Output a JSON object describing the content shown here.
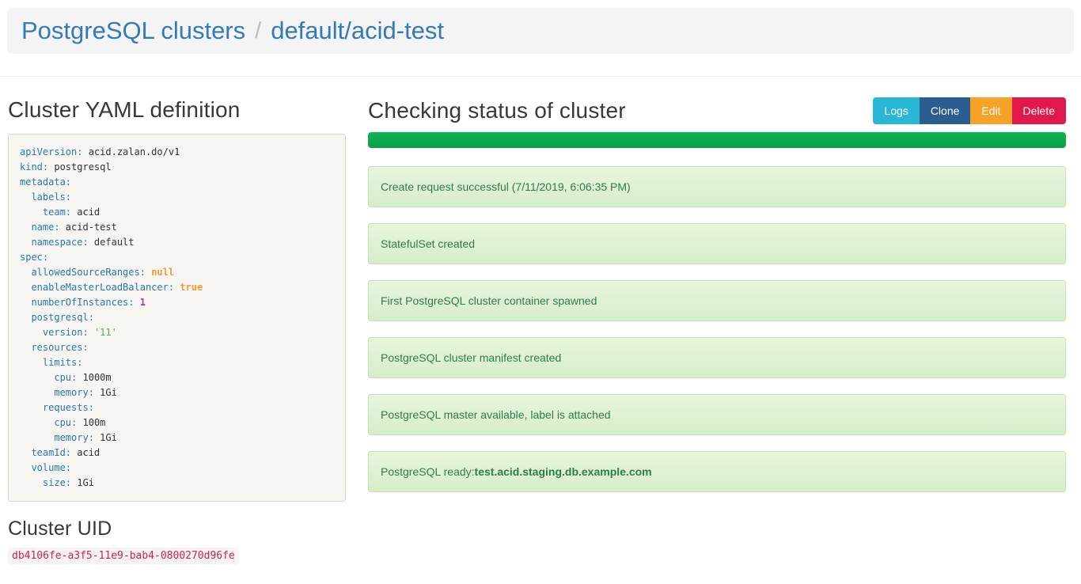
{
  "header": {
    "breadcrumb_root": "PostgreSQL clusters",
    "breadcrumb_separator": "/",
    "breadcrumb_current": "default/acid-test"
  },
  "yaml_section": {
    "title": "Cluster YAML definition",
    "lines": [
      [
        [
          "k",
          "apiVersion:"
        ],
        [
          "p",
          " acid.zalan.do/v1"
        ]
      ],
      [
        [
          "k",
          "kind:"
        ],
        [
          "p",
          " postgresql"
        ]
      ],
      [
        [
          "k",
          "metadata:"
        ]
      ],
      [
        [
          "p",
          "  "
        ],
        [
          "k",
          "labels:"
        ]
      ],
      [
        [
          "p",
          "    "
        ],
        [
          "k",
          "team:"
        ],
        [
          "p",
          " acid"
        ]
      ],
      [
        [
          "p",
          "  "
        ],
        [
          "k",
          "name:"
        ],
        [
          "p",
          " acid-test"
        ]
      ],
      [
        [
          "p",
          "  "
        ],
        [
          "k",
          "namespace:"
        ],
        [
          "p",
          " default"
        ]
      ],
      [
        [
          "k",
          "spec:"
        ]
      ],
      [
        [
          "p",
          "  "
        ],
        [
          "k",
          "allowedSourceRanges:"
        ],
        [
          "p",
          " "
        ],
        [
          "l",
          "null"
        ]
      ],
      [
        [
          "p",
          "  "
        ],
        [
          "k",
          "enableMasterLoadBalancer:"
        ],
        [
          "p",
          " "
        ],
        [
          "l",
          "true"
        ]
      ],
      [
        [
          "p",
          "  "
        ],
        [
          "k",
          "numberOfInstances:"
        ],
        [
          "p",
          " "
        ],
        [
          "n",
          "1"
        ]
      ],
      [
        [
          "p",
          "  "
        ],
        [
          "k",
          "postgresql:"
        ]
      ],
      [
        [
          "p",
          "    "
        ],
        [
          "k",
          "version:"
        ],
        [
          "p",
          " "
        ],
        [
          "s",
          "'11'"
        ]
      ],
      [
        [
          "p",
          "  "
        ],
        [
          "k",
          "resources:"
        ]
      ],
      [
        [
          "p",
          "    "
        ],
        [
          "k",
          "limits:"
        ]
      ],
      [
        [
          "p",
          "      "
        ],
        [
          "k",
          "cpu:"
        ],
        [
          "p",
          " 1000m"
        ]
      ],
      [
        [
          "p",
          "      "
        ],
        [
          "k",
          "memory:"
        ],
        [
          "p",
          " 1Gi"
        ]
      ],
      [
        [
          "p",
          "    "
        ],
        [
          "k",
          "requests:"
        ]
      ],
      [
        [
          "p",
          "      "
        ],
        [
          "k",
          "cpu:"
        ],
        [
          "p",
          " 100m"
        ]
      ],
      [
        [
          "p",
          "      "
        ],
        [
          "k",
          "memory:"
        ],
        [
          "p",
          " 1Gi"
        ]
      ],
      [
        [
          "p",
          "  "
        ],
        [
          "k",
          "teamId:"
        ],
        [
          "p",
          " acid"
        ]
      ],
      [
        [
          "p",
          "  "
        ],
        [
          "k",
          "volume:"
        ]
      ],
      [
        [
          "p",
          "    "
        ],
        [
          "k",
          "size:"
        ],
        [
          "p",
          " 1Gi"
        ]
      ]
    ]
  },
  "uid_section": {
    "title": "Cluster UID",
    "uid": "db4106fe-a3f5-11e9-bab4-0800270d96fe"
  },
  "status_section": {
    "title": "Checking status of cluster",
    "buttons": [
      {
        "label": "Logs",
        "color": "#29b7d8"
      },
      {
        "label": "Clone",
        "color": "#2a5d90"
      },
      {
        "label": "Edit",
        "color": "#f6a226"
      },
      {
        "label": "Delete",
        "color": "#e2174c"
      }
    ],
    "progress_percent": 100,
    "progress_color": "#0aa84b",
    "messages": [
      {
        "text": "Create request successful (7/11/2019, 6:06:35 PM)"
      },
      {
        "text": "StatefulSet created"
      },
      {
        "text": "First PostgreSQL cluster container spawned"
      },
      {
        "text": "PostgreSQL cluster manifest created"
      },
      {
        "text": "PostgreSQL master available, label is attached"
      },
      {
        "text": "PostgreSQL ready: ",
        "bold": "test.acid.staging.db.example.com"
      }
    ]
  },
  "colors": {
    "link_blue": "#337ab7",
    "status_text_green": "#2e7d49",
    "status_bg_green_top": "#e8f6df",
    "status_bg_green_bottom": "#d5edc8",
    "status_border_green": "#c5e2b3",
    "uid_pink_text": "#c7254e",
    "uid_pink_bg": "#f9f2f4",
    "yaml_key_blue": "#2779ae",
    "yaml_literal_orange": "#ef9d2f",
    "yaml_number_magenta": "#b03a8c",
    "yaml_string_green": "#4fae4f"
  }
}
